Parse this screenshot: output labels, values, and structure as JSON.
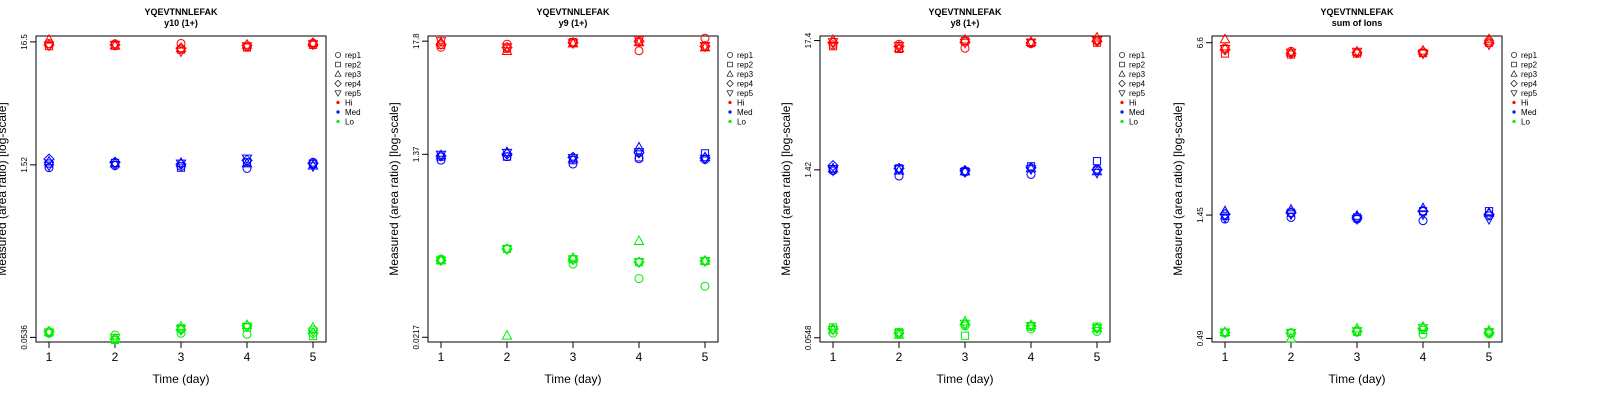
{
  "colors": {
    "Hi": "#ff0000",
    "Med": "#0000ff",
    "Lo": "#00ee00"
  },
  "chart_data": [
    {
      "type": "scatter",
      "title": "YQEVTNNLEFAK",
      "subtitle": "y10 (1+)",
      "xlabel": "Time (day)",
      "ylabel": "Measured (area ratio) [log-scale]",
      "x_ticks": [
        "1",
        "2",
        "3",
        "4",
        "5"
      ],
      "y_ticks": [
        "0.0536",
        "1.52",
        "16.5"
      ],
      "y_tick_values": [
        0.0536,
        1.52,
        16.5
      ],
      "ylim": [
        0.049,
        18.5
      ],
      "legend": [
        "rep1",
        "rep2",
        "rep3",
        "rep4",
        "rep5",
        "Hi",
        "Med",
        "Lo"
      ],
      "series": [
        {
          "group": "Hi",
          "rep": "rep1",
          "values": [
            16.0,
            15.9,
            16.0,
            15.0,
            16.1
          ]
        },
        {
          "group": "Hi",
          "rep": "rep2",
          "values": [
            15.2,
            15.3,
            14.2,
            14.8,
            15.6
          ]
        },
        {
          "group": "Hi",
          "rep": "rep3",
          "values": [
            17.2,
            15.4,
            14.6,
            15.6,
            16.2
          ]
        },
        {
          "group": "Hi",
          "rep": "rep4",
          "values": [
            15.5,
            15.6,
            14.6,
            15.4,
            15.7
          ]
        },
        {
          "group": "Hi",
          "rep": "rep5",
          "values": [
            15.4,
            15.6,
            13.7,
            15.2,
            15.8
          ]
        },
        {
          "group": "Med",
          "rep": "rep1",
          "values": [
            1.44,
            1.5,
            1.48,
            1.42,
            1.6
          ]
        },
        {
          "group": "Med",
          "rep": "rep2",
          "values": [
            1.56,
            1.58,
            1.44,
            1.6,
            1.55
          ]
        },
        {
          "group": "Med",
          "rep": "rep3",
          "values": [
            1.62,
            1.56,
            1.58,
            1.56,
            1.5
          ]
        },
        {
          "group": "Med",
          "rep": "rep4",
          "values": [
            1.7,
            1.6,
            1.54,
            1.66,
            1.56
          ]
        },
        {
          "group": "Med",
          "rep": "rep5",
          "values": [
            1.5,
            1.52,
            1.56,
            1.72,
            1.48
          ]
        },
        {
          "group": "Lo",
          "rep": "rep1",
          "values": [
            0.058,
            0.056,
            0.058,
            0.057,
            0.062
          ]
        },
        {
          "group": "Lo",
          "rep": "rep2",
          "values": [
            0.059,
            0.051,
            0.064,
            0.065,
            0.055
          ]
        },
        {
          "group": "Lo",
          "rep": "rep3",
          "values": [
            0.06,
            0.052,
            0.066,
            0.068,
            0.065
          ]
        },
        {
          "group": "Lo",
          "rep": "rep4",
          "values": [
            0.06,
            0.052,
            0.062,
            0.067,
            0.058
          ]
        },
        {
          "group": "Lo",
          "rep": "rep5",
          "values": [
            0.059,
            0.053,
            0.063,
            0.066,
            0.06
          ]
        }
      ]
    },
    {
      "type": "scatter",
      "title": "YQEVTNNLEFAK",
      "subtitle": "y9 (1+)",
      "xlabel": "Time (day)",
      "ylabel": "Measured (area ratio) [log-scale]",
      "x_ticks": [
        "1",
        "2",
        "3",
        "4",
        "5"
      ],
      "y_ticks": [
        "0.0217",
        "1.37",
        "17.8"
      ],
      "y_tick_values": [
        0.0217,
        1.37,
        17.8
      ],
      "ylim": [
        0.0195,
        20.0
      ],
      "legend": [
        "rep1",
        "rep2",
        "rep3",
        "rep4",
        "rep5",
        "Hi",
        "Med",
        "Lo"
      ],
      "series": [
        {
          "group": "Hi",
          "rep": "rep1",
          "values": [
            15.5,
            16.6,
            17.0,
            14.3,
            19.0
          ]
        },
        {
          "group": "Hi",
          "rep": "rep2",
          "values": [
            16.4,
            15.0,
            17.4,
            17.6,
            15.7
          ]
        },
        {
          "group": "Hi",
          "rep": "rep3",
          "values": [
            17.3,
            14.2,
            16.9,
            17.3,
            15.4
          ]
        },
        {
          "group": "Hi",
          "rep": "rep4",
          "values": [
            16.6,
            15.4,
            17.2,
            17.7,
            15.8
          ]
        },
        {
          "group": "Hi",
          "rep": "rep5",
          "values": [
            17.8,
            15.5,
            17.0,
            18.3,
            16.0
          ]
        },
        {
          "group": "Med",
          "rep": "rep1",
          "values": [
            1.2,
            1.3,
            1.1,
            1.24,
            1.22
          ]
        },
        {
          "group": "Med",
          "rep": "rep2",
          "values": [
            1.3,
            1.3,
            1.2,
            1.28,
            1.4
          ]
        },
        {
          "group": "Med",
          "rep": "rep3",
          "values": [
            1.34,
            1.44,
            1.24,
            1.6,
            1.28
          ]
        },
        {
          "group": "Med",
          "rep": "rep4",
          "values": [
            1.32,
            1.38,
            1.28,
            1.42,
            1.26
          ]
        },
        {
          "group": "Med",
          "rep": "rep5",
          "values": [
            1.36,
            1.42,
            1.26,
            1.44,
            1.24
          ]
        },
        {
          "group": "Lo",
          "rep": "rep1",
          "values": [
            0.128,
            0.16,
            0.114,
            0.082,
            0.069
          ]
        },
        {
          "group": "Lo",
          "rep": "rep2",
          "values": [
            0.124,
            0.161,
            0.127,
            0.119,
            0.122
          ]
        },
        {
          "group": "Lo",
          "rep": "rep3",
          "values": [
            0.124,
            0.0225,
            0.131,
            0.192,
            0.123
          ]
        },
        {
          "group": "Lo",
          "rep": "rep4",
          "values": [
            0.124,
            0.16,
            0.127,
            0.119,
            0.122
          ]
        },
        {
          "group": "Lo",
          "rep": "rep5",
          "values": [
            0.124,
            0.16,
            0.127,
            0.119,
            0.122
          ]
        }
      ]
    },
    {
      "type": "scatter",
      "title": "YQEVTNNLEFAK",
      "subtitle": "y8 (1+)",
      "xlabel": "Time (day)",
      "ylabel": "Measured (area ratio) [log-scale]",
      "x_ticks": [
        "1",
        "2",
        "3",
        "4",
        "5"
      ],
      "y_ticks": [
        "0.0548",
        "1.42",
        "17.4"
      ],
      "y_tick_values": [
        0.0548,
        1.42,
        17.4
      ],
      "ylim": [
        0.0505,
        19.0
      ],
      "legend": [
        "rep1",
        "rep2",
        "rep3",
        "rep4",
        "rep5",
        "Hi",
        "Med",
        "Lo"
      ],
      "series": [
        {
          "group": "Hi",
          "rep": "rep1",
          "values": [
            16.0,
            16.2,
            15.0,
            16.4,
            17.6
          ]
        },
        {
          "group": "Hi",
          "rep": "rep2",
          "values": [
            15.6,
            14.8,
            17.2,
            16.6,
            16.7
          ]
        },
        {
          "group": "Hi",
          "rep": "rep3",
          "values": [
            17.6,
            15.0,
            17.7,
            16.9,
            18.4
          ]
        },
        {
          "group": "Hi",
          "rep": "rep4",
          "values": [
            16.7,
            15.5,
            16.9,
            16.6,
            17.1
          ]
        },
        {
          "group": "Hi",
          "rep": "rep5",
          "values": [
            16.9,
            15.7,
            16.7,
            16.8,
            17.4
          ]
        },
        {
          "group": "Med",
          "rep": "rep1",
          "values": [
            1.4,
            1.26,
            1.36,
            1.3,
            1.44
          ]
        },
        {
          "group": "Med",
          "rep": "rep2",
          "values": [
            1.44,
            1.46,
            1.38,
            1.52,
            1.68
          ]
        },
        {
          "group": "Med",
          "rep": "rep3",
          "values": [
            1.46,
            1.4,
            1.38,
            1.46,
            1.38
          ]
        },
        {
          "group": "Med",
          "rep": "rep4",
          "values": [
            1.54,
            1.46,
            1.4,
            1.48,
            1.42
          ]
        },
        {
          "group": "Med",
          "rep": "rep5",
          "values": [
            1.4,
            1.44,
            1.36,
            1.44,
            1.34
          ]
        },
        {
          "group": "Lo",
          "rep": "rep1",
          "values": [
            0.06,
            0.059,
            0.069,
            0.065,
            0.062
          ]
        },
        {
          "group": "Lo",
          "rep": "rep2",
          "values": [
            0.067,
            0.061,
            0.057,
            0.068,
            0.068
          ]
        },
        {
          "group": "Lo",
          "rep": "rep3",
          "values": [
            0.064,
            0.058,
            0.075,
            0.07,
            0.066
          ]
        },
        {
          "group": "Lo",
          "rep": "rep4",
          "values": [
            0.065,
            0.06,
            0.071,
            0.069,
            0.066
          ]
        },
        {
          "group": "Lo",
          "rep": "rep5",
          "values": [
            0.064,
            0.06,
            0.072,
            0.069,
            0.066
          ]
        }
      ]
    },
    {
      "type": "scatter",
      "title": "YQEVTNNLEFAK",
      "subtitle": "sum of Ions",
      "xlabel": "Time (day)",
      "ylabel": "Measured (area ratio) [log-scale]",
      "x_ticks": [
        "1",
        "2",
        "3",
        "4",
        "5"
      ],
      "y_ticks": [
        "0.49",
        "1.45",
        "6.6"
      ],
      "y_tick_values": [
        0.49,
        1.45,
        6.6
      ],
      "ylim": [
        0.475,
        7.0
      ],
      "legend": [
        "rep1",
        "rep2",
        "rep3",
        "rep4",
        "rep5",
        "Hi",
        "Med",
        "Lo"
      ],
      "series": [
        {
          "group": "Hi",
          "rep": "rep1",
          "values": [
            6.3,
            6.12,
            6.05,
            6.04,
            6.7
          ]
        },
        {
          "group": "Hi",
          "rep": "rep2",
          "values": [
            6.0,
            5.95,
            6.0,
            6.02,
            6.6
          ]
        },
        {
          "group": "Hi",
          "rep": "rep3",
          "values": [
            6.8,
            6.05,
            6.1,
            6.15,
            6.8
          ]
        },
        {
          "group": "Hi",
          "rep": "rep4",
          "values": [
            6.2,
            6.0,
            6.05,
            6.1,
            6.55
          ]
        },
        {
          "group": "Hi",
          "rep": "rep5",
          "values": [
            6.25,
            6.05,
            6.1,
            6.0,
            6.5
          ]
        },
        {
          "group": "Med",
          "rep": "rep1",
          "values": [
            1.4,
            1.42,
            1.4,
            1.38,
            1.44
          ]
        },
        {
          "group": "Med",
          "rep": "rep2",
          "values": [
            1.44,
            1.48,
            1.42,
            1.5,
            1.5
          ]
        },
        {
          "group": "Med",
          "rep": "rep3",
          "values": [
            1.5,
            1.52,
            1.44,
            1.54,
            1.48
          ]
        },
        {
          "group": "Med",
          "rep": "rep4",
          "values": [
            1.46,
            1.48,
            1.42,
            1.5,
            1.46
          ]
        },
        {
          "group": "Med",
          "rep": "rep5",
          "values": [
            1.42,
            1.46,
            1.4,
            1.46,
            1.4
          ]
        },
        {
          "group": "Lo",
          "rep": "rep1",
          "values": [
            0.515,
            0.514,
            0.518,
            0.508,
            0.51
          ]
        },
        {
          "group": "Lo",
          "rep": "rep2",
          "values": [
            0.516,
            0.515,
            0.52,
            0.528,
            0.518
          ]
        },
        {
          "group": "Lo",
          "rep": "rep3",
          "values": [
            0.518,
            0.49,
            0.535,
            0.543,
            0.525
          ]
        },
        {
          "group": "Lo",
          "rep": "rep4",
          "values": [
            0.516,
            0.513,
            0.522,
            0.535,
            0.516
          ]
        },
        {
          "group": "Lo",
          "rep": "rep5",
          "values": [
            0.517,
            0.514,
            0.523,
            0.537,
            0.518
          ]
        }
      ]
    }
  ]
}
